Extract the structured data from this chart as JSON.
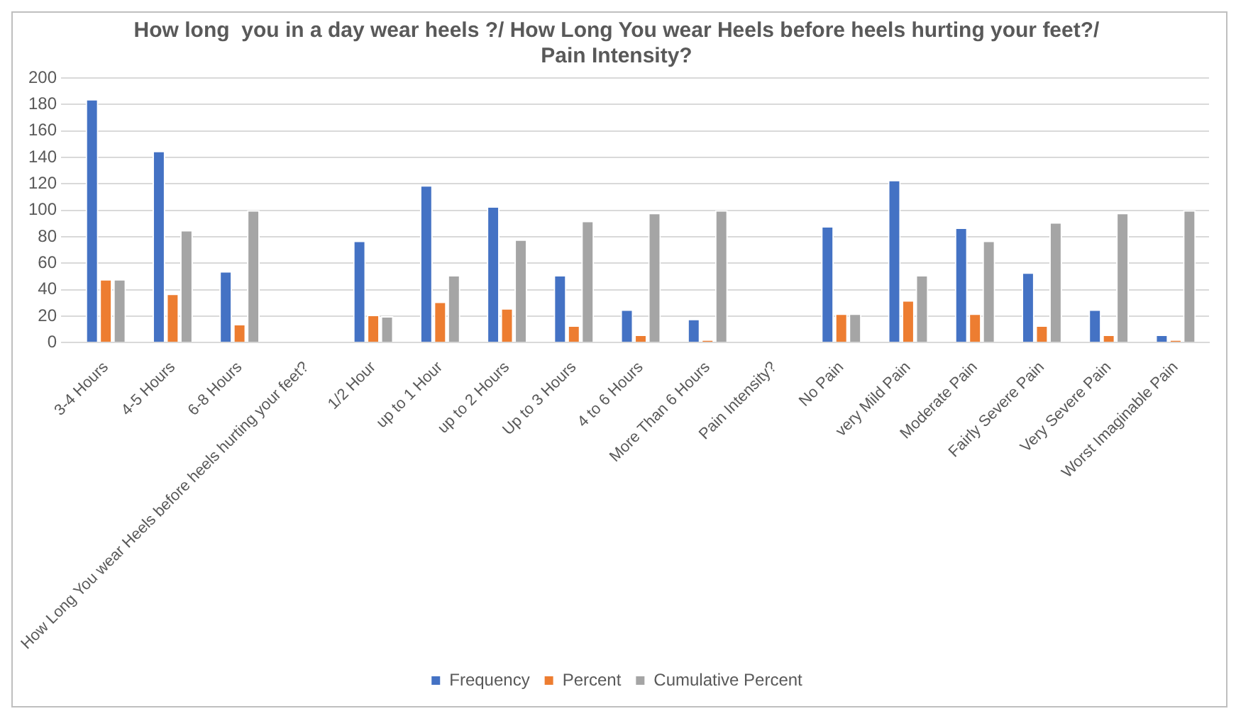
{
  "chart_data": {
    "type": "bar",
    "title": [
      "How long  you in a day wear heels ?/ How Long You wear Heels before heels hurting your feet?/",
      "Pain Intensity?"
    ],
    "categories": [
      "3-4 Hours",
      "4-5 Hours",
      "6-8 Hours",
      "How Long You wear Heels before heels hurting your feet?",
      "1/2 Hour",
      "up to 1 Hour",
      "up to 2 Hours",
      "Up to 3 Hours",
      "4 to 6 Hours",
      "More Than 6 Hours",
      "Pain Intensity?",
      "No Pain",
      "very Mild Pain",
      "Moderate Pain",
      "Fairly Severe Pain",
      "Very Severe Pain",
      "Worst Imaginable Pain"
    ],
    "series": [
      {
        "name": "Frequency",
        "color": "#4472c4",
        "values": [
          184,
          145,
          54,
          null,
          77,
          119,
          103,
          51,
          25,
          18,
          null,
          88,
          123,
          87,
          53,
          25,
          6
        ]
      },
      {
        "name": "Percent",
        "color": "#ed7d31",
        "values": [
          48,
          37,
          14,
          null,
          21,
          31,
          26,
          13,
          6,
          2,
          null,
          22,
          32,
          22,
          13,
          6,
          2
        ]
      },
      {
        "name": "Cumulative Percent",
        "color": "#a5a5a5",
        "values": [
          48,
          85,
          100,
          null,
          20,
          51,
          78,
          92,
          98,
          100,
          null,
          22,
          51,
          77,
          91,
          98,
          100
        ]
      }
    ],
    "ylim": [
      0,
      200
    ],
    "yticks": [
      0,
      20,
      40,
      60,
      80,
      100,
      120,
      140,
      160,
      180,
      200
    ],
    "grid": "y",
    "legend": "bottom"
  }
}
